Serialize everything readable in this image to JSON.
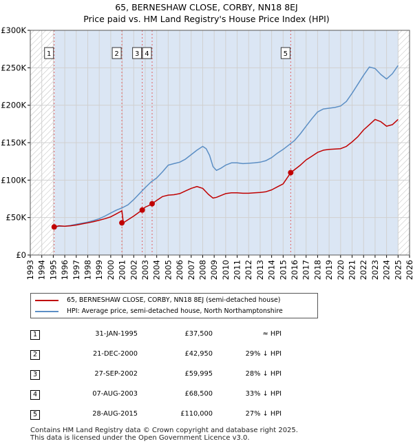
{
  "header": {
    "title_line1": "65, BERNESHAW CLOSE, CORBY, NN18 8EJ",
    "title_line2": "Price paid vs. HM Land Registry's House Price Index (HPI)"
  },
  "colors": {
    "price_line": "#c00000",
    "hpi_line": "#5b8ec4",
    "band_fill": "#dbe6f4",
    "hatch": "#bbbbbb",
    "vline": "#e06060",
    "grid": "#d0d0d0"
  },
  "chart_data": {
    "type": "line",
    "title": "Price paid vs. HM Land Registry's House Price Index (HPI)",
    "xlim": [
      1993,
      2026
    ],
    "ylim": [
      0,
      300000
    ],
    "x_ticks": [
      "1993",
      "1994",
      "1995",
      "1996",
      "1997",
      "1998",
      "1999",
      "2000",
      "2001",
      "2002",
      "2003",
      "2004",
      "2005",
      "2006",
      "2007",
      "2008",
      "2009",
      "2010",
      "2011",
      "2012",
      "2013",
      "2014",
      "2015",
      "2016",
      "2017",
      "2018",
      "2019",
      "2020",
      "2021",
      "2022",
      "2023",
      "2024",
      "2025",
      "2026"
    ],
    "y_ticks": [
      {
        "value": 0,
        "label": "£0"
      },
      {
        "value": 50000,
        "label": "£50K"
      },
      {
        "value": 100000,
        "label": "£100K"
      },
      {
        "value": 150000,
        "label": "£150K"
      },
      {
        "value": 200000,
        "label": "£200K"
      },
      {
        "value": 250000,
        "label": "£250K"
      },
      {
        "value": 300000,
        "label": "£300K"
      }
    ],
    "grid": true,
    "hatched_ranges": [
      [
        1993,
        1995.08
      ],
      [
        2025.0,
        2026
      ]
    ],
    "shaded_band": [
      1995.08,
      2025.0
    ],
    "series": [
      {
        "name": "65, BERNESHAW CLOSE, CORBY, NN18 8EJ (semi-detached house)",
        "x": [
          1995.08,
          1995.5,
          1996,
          1996.5,
          1997,
          1997.5,
          1998,
          1998.5,
          1999,
          1999.5,
          2000,
          2000.5,
          2000.97,
          2001.1,
          2001.5,
          2002,
          2002.5,
          2002.74,
          2003,
          2003.3,
          2003.6,
          2004,
          2004.5,
          2005,
          2005.5,
          2006,
          2006.5,
          2007,
          2007.5,
          2008,
          2008.5,
          2008.9,
          2009.2,
          2009.6,
          2010,
          2010.5,
          2011,
          2011.5,
          2012,
          2012.5,
          2013,
          2013.5,
          2014,
          2014.5,
          2015,
          2015.66,
          2016,
          2016.5,
          2017,
          2017.5,
          2018,
          2018.5,
          2019,
          2019.5,
          2020,
          2020.5,
          2021,
          2021.5,
          2022,
          2022.5,
          2023,
          2023.5,
          2024,
          2024.5,
          2025.0
        ],
        "y": [
          37500,
          39000,
          38500,
          39000,
          40000,
          41500,
          43000,
          44500,
          46500,
          48500,
          51000,
          55000,
          59000,
          42950,
          47000,
          52000,
          57500,
          59995,
          64000,
          66000,
          68500,
          73000,
          78000,
          80000,
          80500,
          82000,
          85500,
          89000,
          91500,
          89000,
          81000,
          76000,
          77000,
          79500,
          82000,
          83000,
          83000,
          82500,
          82500,
          83000,
          83500,
          84500,
          87000,
          91000,
          95000,
          110000,
          114000,
          120000,
          127000,
          132000,
          137000,
          140000,
          141000,
          141500,
          142000,
          145000,
          151000,
          158000,
          167000,
          174000,
          181000,
          178000,
          172000,
          174000,
          181000
        ]
      },
      {
        "name": "HPI: Average price, semi-detached house, North Northamptonshire",
        "x": [
          1995.08,
          1995.5,
          1996,
          1996.5,
          1997,
          1997.5,
          1998,
          1998.5,
          1999,
          1999.5,
          2000,
          2000.5,
          2001,
          2001.5,
          2002,
          2002.5,
          2003,
          2003.5,
          2004,
          2004.5,
          2005,
          2005.5,
          2006,
          2006.5,
          2007,
          2007.5,
          2008,
          2008.3,
          2008.6,
          2008.9,
          2009.2,
          2009.6,
          2010,
          2010.5,
          2011,
          2011.5,
          2012,
          2012.5,
          2013,
          2013.5,
          2014,
          2014.5,
          2015,
          2015.5,
          2016,
          2016.5,
          2017,
          2017.5,
          2018,
          2018.5,
          2019,
          2019.5,
          2020,
          2020.5,
          2021,
          2021.5,
          2022,
          2022.5,
          2023,
          2023.5,
          2024,
          2024.5,
          2025.0
        ],
        "y": [
          37500,
          38500,
          38500,
          39500,
          41000,
          42500,
          44000,
          46000,
          48500,
          52000,
          56000,
          60000,
          63000,
          67000,
          74000,
          82000,
          90000,
          97500,
          103000,
          111000,
          120000,
          122000,
          124000,
          128000,
          134000,
          140000,
          145000,
          142000,
          133000,
          118000,
          113000,
          116000,
          120000,
          123000,
          123000,
          122000,
          122500,
          123000,
          124000,
          126000,
          130000,
          136000,
          141000,
          147000,
          153000,
          162000,
          172000,
          182000,
          191000,
          195000,
          196000,
          197000,
          199000,
          205000,
          216000,
          228000,
          240000,
          251000,
          249000,
          241000,
          235000,
          242000,
          253000
        ]
      }
    ],
    "sale_markers": [
      {
        "label": "1",
        "x": 1995.08,
        "y": 37500
      },
      {
        "label": "2",
        "x": 2000.97,
        "y": 42950
      },
      {
        "label": "3",
        "x": 2002.74,
        "y": 59995
      },
      {
        "label": "4",
        "x": 2003.6,
        "y": 68500
      },
      {
        "label": "5",
        "x": 2015.66,
        "y": 110000
      }
    ]
  },
  "legend": {
    "entries": [
      {
        "label": "65, BERNESHAW CLOSE, CORBY, NN18 8EJ (semi-detached house)"
      },
      {
        "label": "HPI: Average price, semi-detached house, North Northamptonshire"
      }
    ]
  },
  "transactions": [
    {
      "num": "1",
      "date": "31-JAN-1995",
      "price": "£37,500",
      "hpi": "≈ HPI"
    },
    {
      "num": "2",
      "date": "21-DEC-2000",
      "price": "£42,950",
      "hpi": "29% ↓ HPI"
    },
    {
      "num": "3",
      "date": "27-SEP-2002",
      "price": "£59,995",
      "hpi": "28% ↓ HPI"
    },
    {
      "num": "4",
      "date": "07-AUG-2003",
      "price": "£68,500",
      "hpi": "33% ↓ HPI"
    },
    {
      "num": "5",
      "date": "28-AUG-2015",
      "price": "£110,000",
      "hpi": "27% ↓ HPI"
    }
  ],
  "footer": {
    "line1": "Contains HM Land Registry data © Crown copyright and database right 2025.",
    "line2": "This data is licensed under the Open Government Licence v3.0."
  }
}
